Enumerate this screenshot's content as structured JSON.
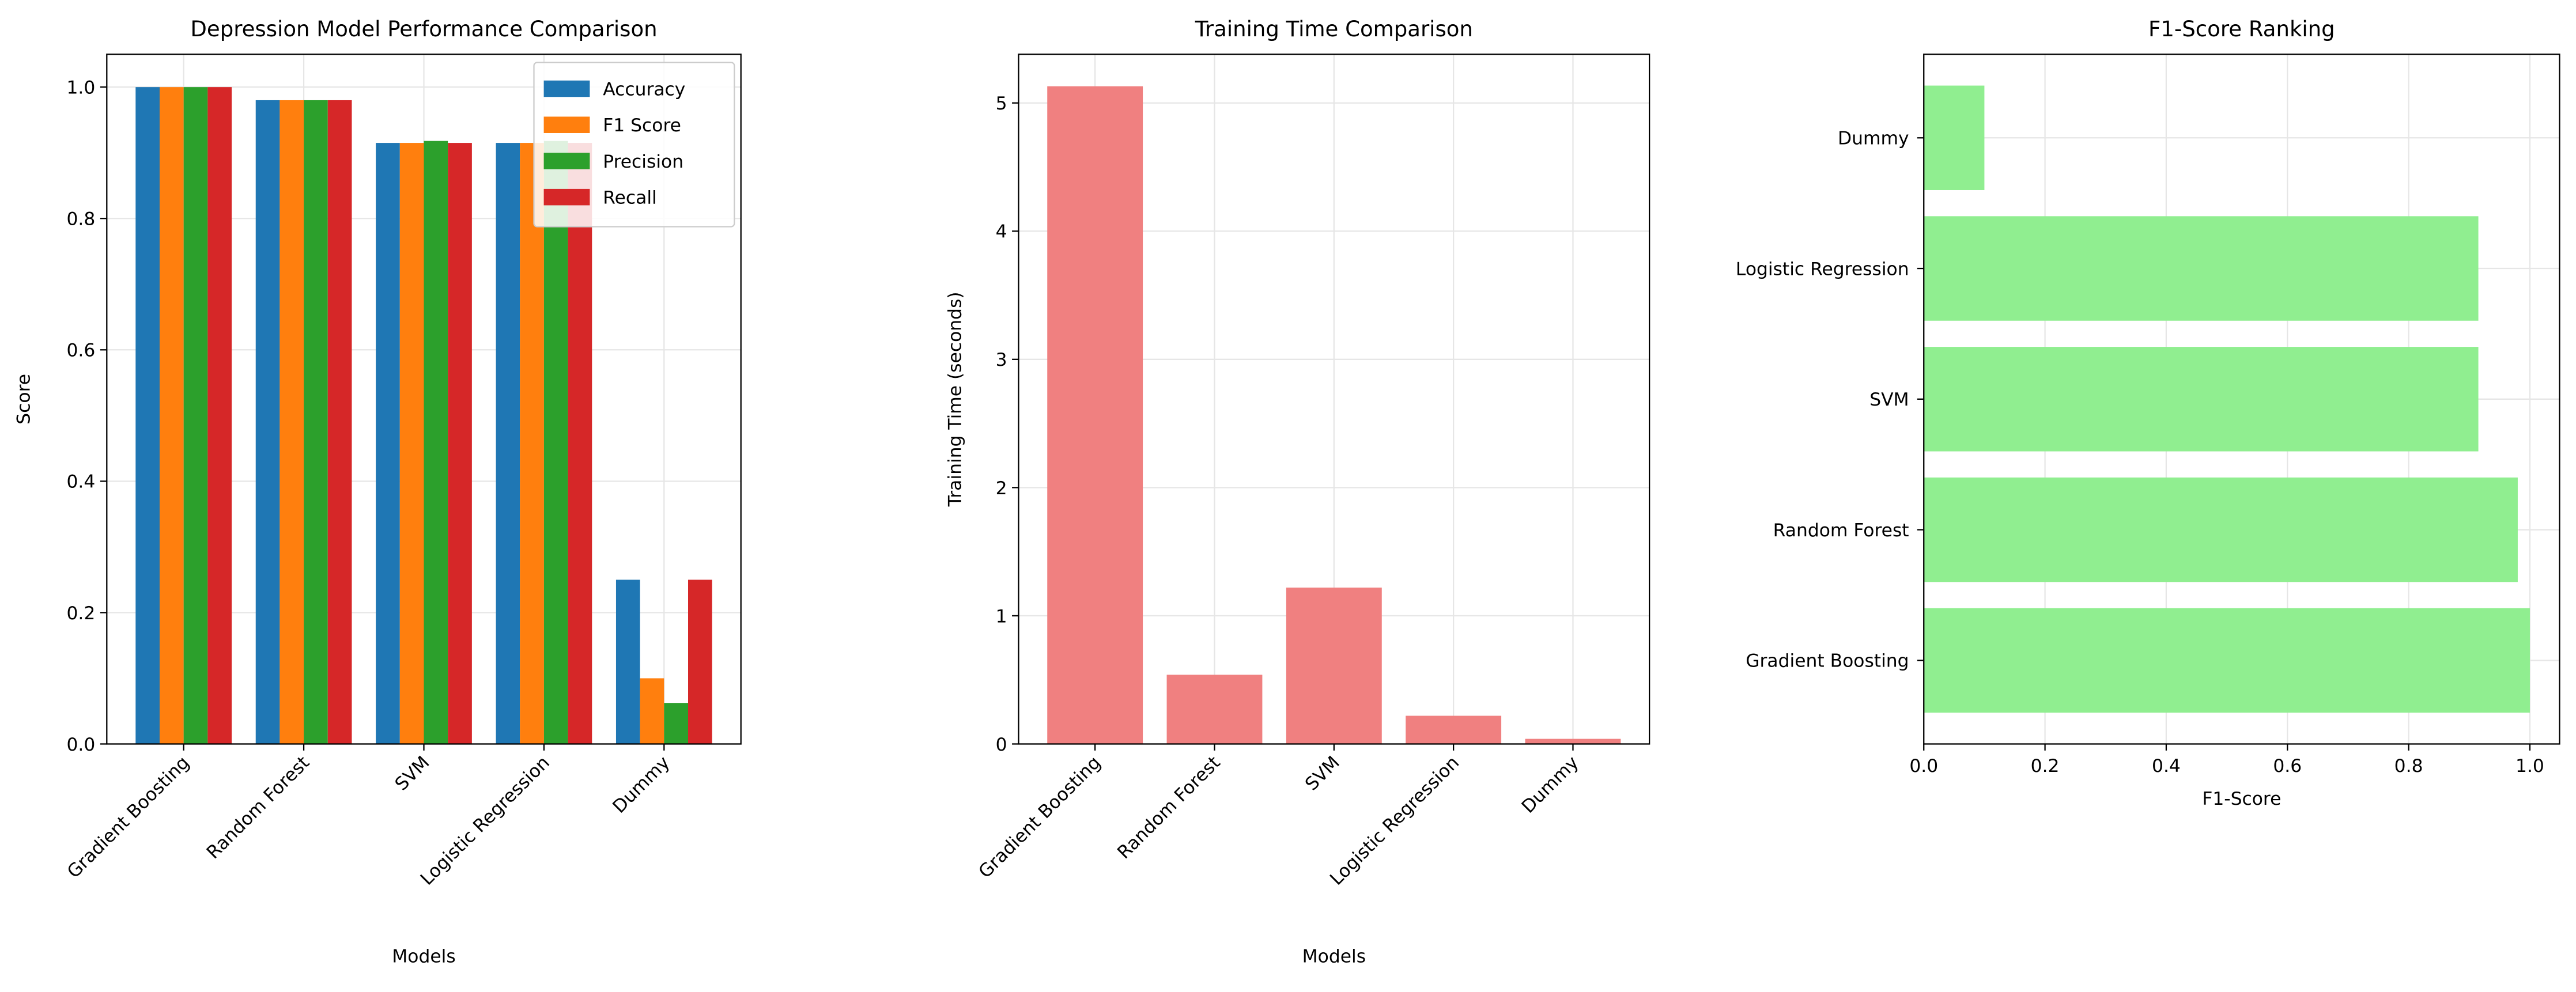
{
  "chart_data": [
    {
      "type": "grouped_bar",
      "title": "Depression Model Performance Comparison",
      "x_label": "Models",
      "y_label": "Score",
      "categories": [
        "Gradient Boosting",
        "Random Forest",
        "SVM",
        "Logistic Regression",
        "Dummy"
      ],
      "series": [
        {
          "name": "Accuracy",
          "color": "#1f77b4",
          "values": [
            1.0,
            0.98,
            0.915,
            0.915,
            0.25
          ]
        },
        {
          "name": "F1 Score",
          "color": "#ff7f0e",
          "values": [
            1.0,
            0.98,
            0.915,
            0.915,
            0.1
          ]
        },
        {
          "name": "Precision",
          "color": "#2ca02c",
          "values": [
            1.0,
            0.98,
            0.918,
            0.918,
            0.0625
          ]
        },
        {
          "name": "Recall",
          "color": "#d62728",
          "values": [
            1.0,
            0.98,
            0.915,
            0.915,
            0.25
          ]
        }
      ],
      "ylim": [
        0,
        1.05
      ],
      "yticks": [
        {
          "value": 0,
          "label": "0.0"
        },
        0.2,
        0.4,
        0.6,
        0.8,
        {
          "value": 1,
          "label": "1.0"
        }
      ],
      "grid": true,
      "legend": "upper right"
    },
    {
      "type": "bar",
      "title": "Training Time Comparison",
      "x_label": "Models",
      "y_label": "Training Time (seconds)",
      "categories": [
        "Gradient Boosting",
        "Random Forest",
        "SVM",
        "Logistic Regression",
        "Dummy"
      ],
      "values": [
        5.13,
        0.54,
        1.22,
        0.22,
        0.04
      ],
      "color": "#f08080",
      "ylim": [
        0,
        5.38
      ],
      "yticks": [
        0,
        1,
        2,
        3,
        4,
        5
      ],
      "grid": true
    },
    {
      "type": "barh",
      "title": "F1-Score Ranking",
      "x_label": "F1-Score",
      "categories": [
        "Gradient Boosting",
        "Random Forest",
        "SVM",
        "Logistic Regression",
        "Dummy"
      ],
      "values": [
        1.0,
        0.98,
        0.915,
        0.915,
        0.1
      ],
      "color": "#90ee90",
      "xlim": [
        0,
        1.049
      ],
      "xticks": [
        {
          "value": 0,
          "label": "0.0"
        },
        0.2,
        0.4,
        0.6,
        0.8,
        {
          "value": 1,
          "label": "1.0"
        }
      ],
      "grid": true
    }
  ]
}
